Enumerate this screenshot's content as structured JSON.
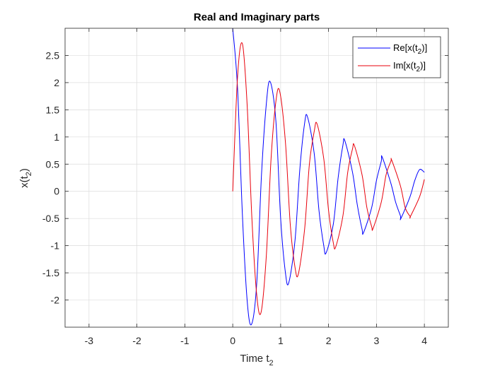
{
  "chart_data": {
    "type": "line",
    "title": "Real and Imaginary parts",
    "xlabel": {
      "base": "Time t",
      "sub": "2"
    },
    "ylabel": {
      "base": "x(t",
      "sub": "2",
      "close": ")"
    },
    "xlim": [
      -3.5,
      4.5
    ],
    "ylim": [
      -2.5,
      3.0
    ],
    "x_ticks": [
      -3,
      -2,
      -1,
      0,
      1,
      2,
      3,
      4
    ],
    "x_tick_labels": [
      "-3",
      "-2",
      "-1",
      "0",
      "1",
      "2",
      "3",
      "4"
    ],
    "y_ticks": [
      -2,
      -1.5,
      -1,
      -0.5,
      0,
      0.5,
      1,
      1.5,
      2,
      2.5
    ],
    "y_tick_labels": [
      "-2",
      "-1.5",
      "-1",
      "-0.5",
      "0",
      "0.5",
      "1",
      "1.5",
      "2",
      "2.5"
    ],
    "grid": true,
    "legend_position": "top-right",
    "series": [
      {
        "legend": {
          "base": "Re[x(t",
          "sub": "2",
          "close": ")]"
        },
        "color": "#0000ff",
        "x": [
          0,
          0.1,
          0.2,
          0.3,
          0.39,
          0.5,
          0.6,
          0.7,
          0.78,
          0.9,
          1.0,
          1.1,
          1.17,
          1.3,
          1.4,
          1.5,
          1.56,
          1.7,
          1.8,
          1.9,
          1.95,
          2.1,
          2.2,
          2.3,
          2.34,
          2.5,
          2.6,
          2.7,
          2.73,
          2.9,
          3.0,
          3.1,
          3.12,
          3.3,
          3.4,
          3.5,
          3.51,
          3.7,
          3.8,
          3.9,
          4.0
        ],
        "y": [
          3.0,
          1.9,
          -0.4,
          -2.0,
          -2.45,
          -1.7,
          0.3,
          1.6,
          2.02,
          1.3,
          -0.5,
          -1.5,
          -1.68,
          -0.9,
          0.4,
          1.25,
          1.37,
          0.7,
          -0.35,
          -1.0,
          -1.13,
          -0.6,
          0.25,
          0.85,
          0.93,
          0.35,
          -0.25,
          -0.7,
          -0.76,
          -0.3,
          0.2,
          0.55,
          0.63,
          0.15,
          -0.2,
          -0.45,
          -0.5,
          -0.1,
          0.2,
          0.4,
          0.35
        ]
      },
      {
        "legend": {
          "base": "Im[x(t",
          "sub": "2",
          "close": ")]"
        },
        "color": "#e8000b",
        "x": [
          0,
          0.1,
          0.2,
          0.3,
          0.4,
          0.5,
          0.59,
          0.7,
          0.8,
          0.9,
          0.98,
          1.1,
          1.2,
          1.3,
          1.37,
          1.5,
          1.6,
          1.7,
          1.76,
          1.9,
          2.0,
          2.1,
          2.15,
          2.3,
          2.4,
          2.5,
          2.54,
          2.7,
          2.8,
          2.9,
          2.93,
          3.1,
          3.2,
          3.3,
          3.32,
          3.5,
          3.6,
          3.7,
          3.71,
          3.9,
          4.0
        ],
        "y": [
          0.0,
          2.1,
          2.72,
          1.6,
          -0.5,
          -1.9,
          -2.23,
          -1.2,
          0.6,
          1.65,
          1.84,
          0.9,
          -0.6,
          -1.4,
          -1.52,
          -0.7,
          0.5,
          1.1,
          1.24,
          0.6,
          -0.35,
          -0.95,
          -1.02,
          -0.45,
          0.35,
          0.78,
          0.84,
          0.3,
          -0.3,
          -0.65,
          -0.68,
          -0.2,
          0.3,
          0.55,
          0.57,
          0.1,
          -0.3,
          -0.46,
          -0.46,
          -0.1,
          0.22
        ]
      }
    ]
  }
}
